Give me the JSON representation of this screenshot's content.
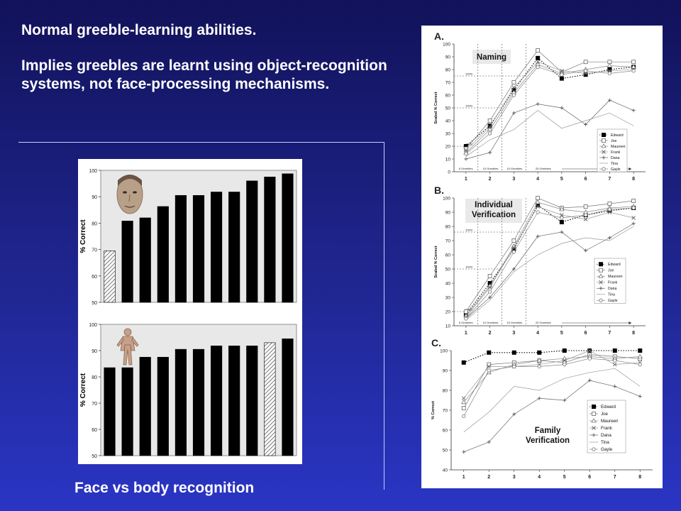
{
  "text": {
    "line1": "Normal greeble-learning abilities.",
    "line2": "Implies greebles are learnt using object-recognition systems, not face-processing mechanisms.",
    "caption": "Face vs body recognition"
  },
  "colors": {
    "background_top": "#12125a",
    "background_bottom": "#2a35c4",
    "text": "#ffffff",
    "bar": "#000000"
  },
  "icons": {
    "face_photo": "face-photo",
    "body_figure": "body-figure"
  },
  "chart_data": [
    {
      "id": "face",
      "type": "bar",
      "ylabel": "% Correct",
      "ylim": [
        50,
        100
      ],
      "yticks": [
        50,
        60,
        70,
        80,
        90,
        100
      ],
      "values": [
        69.5,
        80.8,
        82,
        86.3,
        90.5,
        90.5,
        91.8,
        91.8,
        96,
        97.5,
        98.7
      ],
      "hatched": [
        0
      ]
    },
    {
      "id": "body",
      "type": "bar",
      "ylabel": "% Correct",
      "ylim": [
        50,
        100
      ],
      "yticks": [
        50,
        60,
        70,
        80,
        90,
        100
      ],
      "values": [
        83.5,
        83.5,
        87.5,
        87.5,
        90.5,
        90.5,
        91.8,
        91.8,
        91.8,
        93,
        94.5
      ],
      "hatched": [
        9
      ]
    },
    {
      "id": "A",
      "type": "line",
      "letter": "A.",
      "title": "Naming",
      "ylabel": "Scaled % Correct",
      "ylim": [
        0,
        100
      ],
      "yticks": [
        0,
        10,
        20,
        30,
        40,
        50,
        60,
        70,
        80,
        90,
        100
      ],
      "x": [
        1,
        2,
        3,
        4,
        5,
        6,
        7,
        8
      ],
      "series": [
        {
          "name": "Edward",
          "values": [
            20,
            36,
            64,
            89,
            73,
            76,
            80,
            82
          ]
        },
        {
          "name": "Joe",
          "values": [
            18,
            40,
            70,
            95,
            78,
            86,
            86,
            86
          ]
        },
        {
          "name": "Maureen",
          "values": [
            15,
            33,
            62,
            84,
            77,
            80,
            83,
            82
          ]
        },
        {
          "name": "Frank",
          "values": [
            17,
            35,
            66,
            86,
            79,
            77,
            79,
            80
          ]
        },
        {
          "name": "Dana",
          "values": [
            10,
            15,
            46,
            53,
            50,
            37,
            56,
            48
          ]
        },
        {
          "name": "Tina",
          "values": [
            12,
            25,
            33,
            48,
            34,
            40,
            46,
            36
          ]
        },
        {
          "name": "Gayle",
          "values": [
            14,
            30,
            60,
            82,
            76,
            79,
            77,
            79
          ]
        }
      ],
      "phase_labels": [
        "5 Greebles",
        "10 Greebles",
        "15 Greebles",
        "20 Greebles"
      ],
      "ref_lines": [
        {
          "label": "100%",
          "y": 20,
          "x_end": 1
        },
        {
          "label": "100%",
          "y": 50,
          "x_end": 2.5
        },
        {
          "label": "100%",
          "y": 75,
          "x_end": 3.5
        }
      ]
    },
    {
      "id": "B",
      "type": "line",
      "letter": "B.",
      "title": "Individual Verification",
      "ylabel": "Scaled % Correct",
      "ylim": [
        10,
        100
      ],
      "yticks": [
        10,
        20,
        30,
        40,
        50,
        60,
        70,
        80,
        90,
        100
      ],
      "x": [
        1,
        2,
        3,
        4,
        5,
        6,
        7,
        8
      ],
      "series": [
        {
          "name": "Edward",
          "values": [
            18,
            40,
            64,
            95,
            83,
            88,
            91,
            93
          ]
        },
        {
          "name": "Joe",
          "values": [
            20,
            45,
            70,
            100,
            93,
            94,
            96,
            98
          ]
        },
        {
          "name": "Maureen",
          "values": [
            17,
            38,
            66,
            97,
            92,
            90,
            93,
            94
          ]
        },
        {
          "name": "Frank",
          "values": [
            16,
            37,
            65,
            94,
            88,
            85,
            90,
            86
          ]
        },
        {
          "name": "Dana",
          "values": [
            15,
            30,
            50,
            73,
            76,
            63,
            72,
            82
          ]
        },
        {
          "name": "Tina",
          "values": [
            14,
            28,
            48,
            60,
            68,
            72,
            70,
            80
          ]
        },
        {
          "name": "Gayle",
          "values": [
            15,
            34,
            62,
            90,
            86,
            88,
            92,
            93
          ]
        }
      ],
      "phase_labels": [
        "5 Greebles",
        "10 Greebles",
        "15 Greebles",
        "20 Greebles"
      ],
      "ref_lines": [
        {
          "label": "100%",
          "y": 20,
          "x_end": 1
        },
        {
          "label": "100%",
          "y": 50,
          "x_end": 2.5
        },
        {
          "label": "100%",
          "y": 76,
          "x_end": 3.5
        }
      ]
    },
    {
      "id": "C",
      "type": "line",
      "letter": "C.",
      "title": "Family Verification",
      "ylabel": "% Correct",
      "ylim": [
        40,
        100
      ],
      "yticks": [
        40,
        50,
        60,
        70,
        80,
        90,
        100
      ],
      "x": [
        1,
        2,
        3,
        4,
        5,
        6,
        7,
        8
      ],
      "series": [
        {
          "name": "Edward",
          "values": [
            94,
            99,
            99,
            99,
            100,
            100,
            100,
            100
          ]
        },
        {
          "name": "Joe",
          "values": [
            71,
            93,
            94,
            95,
            94,
            98,
            97,
            96
          ]
        },
        {
          "name": "Maureen",
          "values": [
            74,
            89,
            93,
            95,
            96,
            97,
            96,
            97
          ]
        },
        {
          "name": "Frank",
          "values": [
            76,
            92,
            92,
            93,
            95,
            100,
            93,
            94
          ]
        },
        {
          "name": "Dana",
          "values": [
            49,
            54,
            68,
            76,
            75,
            85,
            82,
            77
          ]
        },
        {
          "name": "Tina",
          "values": [
            59,
            69,
            82,
            80,
            86,
            89,
            91,
            82
          ]
        },
        {
          "name": "Gayle",
          "values": [
            67,
            90,
            92,
            92,
            93,
            96,
            95,
            93
          ]
        }
      ]
    }
  ]
}
